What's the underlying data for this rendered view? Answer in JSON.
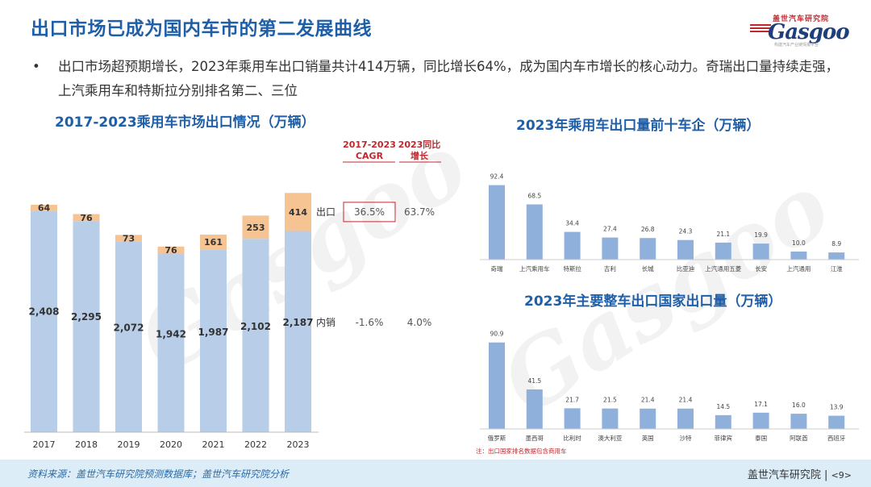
{
  "page": {
    "title": "出口市场已成为国内车市的第二发展曲线",
    "bullet_mark": "•",
    "bullet_text": "出口市场超预期增长，2023年乘用车出口销量共计414万辆，同比增长64%，成为国内车市增长的核心动力。奇瑞出口量持续走强，上汽乘用车和特斯拉分别排名第二、三位",
    "logo": {
      "cn": "盖世汽车研究院",
      "en": "Gasgoo",
      "tag": "构建汽车产业链情报平台"
    },
    "watermark": "Gasgoo",
    "footer": {
      "source": "资料来源：盖世汽车研究院预测数据库；盖世汽车研究院分析",
      "brand": "盖世汽车研究院",
      "separator": "|",
      "page": "<9>"
    }
  },
  "colors": {
    "domestic": "#b7cde8",
    "export": "#f6c392",
    "bar_blue": "#8fb0db",
    "title_blue": "#1f5fa8",
    "header_red": "#c0282e"
  },
  "chart_data": [
    {
      "type": "bar",
      "stacked": true,
      "title": "2017-2023乘用车市场出口情况（万辆）",
      "categories": [
        "2017",
        "2018",
        "2019",
        "2020",
        "2021",
        "2022",
        "2023"
      ],
      "series": [
        {
          "name": "内销",
          "values": [
            2408,
            2295,
            2072,
            1942,
            1987,
            2102,
            2187
          ]
        },
        {
          "name": "出口",
          "values": [
            64,
            76,
            73,
            76,
            161,
            253,
            414
          ]
        }
      ],
      "ylim": [
        0,
        2700
      ],
      "side_table": {
        "headers": [
          "2017-2023 CAGR",
          "2023同比 增长"
        ],
        "rows": [
          {
            "label": "出口",
            "cagr": "36.5%",
            "yoy": "63.7%",
            "highlight": true
          },
          {
            "label": "内销",
            "cagr": "-1.6%",
            "yoy": "4.0%",
            "highlight": false
          }
        ]
      }
    },
    {
      "type": "bar",
      "title": "2023年乘用车出口量前十车企（万辆）",
      "categories": [
        "奇瑞",
        "上汽乘用车",
        "特斯拉",
        "吉利",
        "长城",
        "比亚迪",
        "上汽通用五菱",
        "长安",
        "上汽通用",
        "江淮"
      ],
      "values": [
        92.4,
        68.5,
        34.4,
        27.4,
        26.8,
        24.3,
        21.1,
        19.9,
        10.0,
        8.9
      ],
      "value_labels": [
        "92.4",
        "68.5",
        "34.4",
        "27.4",
        "26.8",
        "24.3",
        "21.1",
        "19.9",
        "10.0",
        "8.9"
      ],
      "ylim": [
        0,
        100
      ]
    },
    {
      "type": "bar",
      "title": "2023年主要整车出口国家出口量（万辆）",
      "categories": [
        "俄罗斯",
        "墨西哥",
        "比利时",
        "澳大利亚",
        "英国",
        "沙特",
        "菲律宾",
        "泰国",
        "阿联酋",
        "西班牙"
      ],
      "values": [
        90.9,
        41.5,
        21.7,
        21.5,
        21.4,
        21.4,
        14.5,
        17.1,
        16.0,
        13.9
      ],
      "value_labels": [
        "90.9",
        "41.5",
        "21.7",
        "21.5",
        "21.4",
        "21.4",
        "14.5",
        "17.1",
        "16.0",
        "13.9"
      ],
      "ylim": [
        0,
        100
      ],
      "note": "注：出口国家排名数据包含商用车"
    }
  ]
}
